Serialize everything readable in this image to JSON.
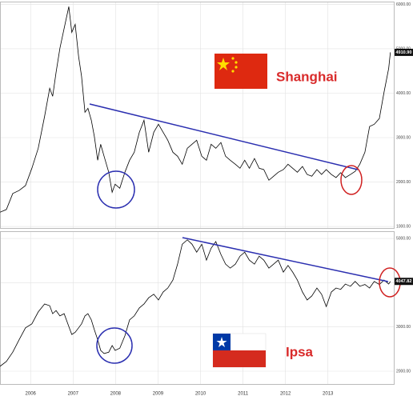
{
  "chart_data": [
    {
      "type": "line",
      "name": "Shanghai",
      "last_label": "4910.90",
      "color": "#000000",
      "ylim": [
        950,
        6050
      ],
      "xlim": [
        2005.28,
        2014.55
      ],
      "yticks": [
        {
          "value": 1000,
          "label": "1000.00"
        },
        {
          "value": 2000,
          "label": "2000.00"
        },
        {
          "value": 3000,
          "label": "3000.00"
        },
        {
          "value": 4000,
          "label": "4000.00"
        },
        {
          "value": 5000,
          "label": "5000.00"
        },
        {
          "value": 6000,
          "label": "6000.00"
        }
      ],
      "x": [
        2005.28,
        2005.43,
        2005.58,
        2005.73,
        2005.88,
        2006.03,
        2006.18,
        2006.33,
        2006.45,
        2006.52,
        2006.6,
        2006.69,
        2006.79,
        2006.9,
        2006.97,
        2007.05,
        2007.13,
        2007.2,
        2007.28,
        2007.35,
        2007.43,
        2007.5,
        2007.58,
        2007.65,
        2007.73,
        2007.84,
        2007.92,
        2007.99,
        2008.1,
        2008.22,
        2008.33,
        2008.44,
        2008.56,
        2008.67,
        2008.78,
        2008.9,
        2009.01,
        2009.12,
        2009.23,
        2009.35,
        2009.46,
        2009.57,
        2009.69,
        2009.8,
        2009.91,
        2010.03,
        2010.14,
        2010.25,
        2010.36,
        2010.48,
        2010.59,
        2010.7,
        2010.82,
        2010.93,
        2011.04,
        2011.15,
        2011.27,
        2011.38,
        2011.49,
        2011.61,
        2011.72,
        2011.83,
        2011.95,
        2012.06,
        2012.17,
        2012.28,
        2012.4,
        2012.51,
        2012.62,
        2012.74,
        2012.85,
        2012.96,
        2013.08,
        2013.19,
        2013.3,
        2013.41,
        2013.53,
        2013.64,
        2013.75,
        2013.87,
        2013.98,
        2014.09,
        2014.21,
        2014.32,
        2014.43,
        2014.47
      ],
      "values": [
        1320,
        1380,
        1740,
        1810,
        1920,
        2310,
        2760,
        3480,
        4110,
        3930,
        4470,
        5010,
        5460,
        5950,
        5370,
        5550,
        4830,
        4380,
        3570,
        3660,
        3390,
        3030,
        2490,
        2850,
        2580,
        2220,
        1770,
        1950,
        1860,
        2220,
        2490,
        2670,
        3120,
        3390,
        2670,
        3120,
        3300,
        3120,
        2940,
        2670,
        2580,
        2400,
        2760,
        2850,
        2940,
        2580,
        2490,
        2850,
        2760,
        2890,
        2580,
        2490,
        2400,
        2310,
        2490,
        2310,
        2530,
        2310,
        2280,
        2040,
        2130,
        2220,
        2280,
        2400,
        2310,
        2220,
        2350,
        2170,
        2130,
        2280,
        2170,
        2280,
        2170,
        2100,
        2210,
        2100,
        2170,
        2240,
        2400,
        2670,
        3250,
        3300,
        3430,
        4020,
        4560,
        4920
      ]
    },
    {
      "type": "line",
      "name": "Ipsa",
      "last_label": "4047.82",
      "color": "#000000",
      "ylim": [
        1700,
        5150
      ],
      "xlim": [
        2005.28,
        2014.55
      ],
      "yticks": [
        {
          "value": 2000,
          "label": "2000.00"
        },
        {
          "value": 3000,
          "label": "3000.00"
        },
        {
          "value": 4000,
          "label": "4000.00"
        },
        {
          "value": 5000,
          "label": "5000.00"
        }
      ],
      "xticks": [
        2006,
        2007,
        2008,
        2009,
        2010,
        2011,
        2012,
        2013
      ],
      "x": [
        2005.28,
        2005.43,
        2005.58,
        2005.73,
        2005.88,
        2006.03,
        2006.18,
        2006.33,
        2006.45,
        2006.52,
        2006.6,
        2006.69,
        2006.79,
        2006.9,
        2006.97,
        2007.05,
        2007.13,
        2007.2,
        2007.28,
        2007.35,
        2007.43,
        2007.5,
        2007.58,
        2007.65,
        2007.73,
        2007.84,
        2007.92,
        2007.99,
        2008.1,
        2008.22,
        2008.33,
        2008.44,
        2008.56,
        2008.67,
        2008.78,
        2008.9,
        2009.01,
        2009.12,
        2009.23,
        2009.35,
        2009.46,
        2009.57,
        2009.69,
        2009.8,
        2009.91,
        2010.03,
        2010.14,
        2010.25,
        2010.36,
        2010.48,
        2010.59,
        2010.7,
        2010.82,
        2010.93,
        2011.04,
        2011.15,
        2011.27,
        2011.38,
        2011.49,
        2011.61,
        2011.72,
        2011.83,
        2011.95,
        2012.06,
        2012.17,
        2012.28,
        2012.4,
        2012.51,
        2012.62,
        2012.74,
        2012.85,
        2012.96,
        2013.08,
        2013.19,
        2013.3,
        2013.41,
        2013.53,
        2013.64,
        2013.75,
        2013.87,
        2013.98,
        2014.09,
        2014.21,
        2014.32,
        2014.43,
        2014.47
      ],
      "values": [
        2110,
        2220,
        2430,
        2710,
        2980,
        3070,
        3340,
        3520,
        3480,
        3300,
        3370,
        3250,
        3300,
        3010,
        2830,
        2880,
        2980,
        3070,
        3250,
        3300,
        3160,
        2940,
        2710,
        2470,
        2400,
        2430,
        2580,
        2470,
        2520,
        2800,
        3160,
        3250,
        3430,
        3520,
        3660,
        3740,
        3610,
        3790,
        3880,
        4060,
        4420,
        4870,
        4970,
        4870,
        4690,
        4870,
        4510,
        4780,
        4930,
        4640,
        4420,
        4330,
        4420,
        4600,
        4690,
        4510,
        4420,
        4600,
        4510,
        4330,
        4420,
        4510,
        4240,
        4390,
        4240,
        4060,
        3790,
        3610,
        3700,
        3880,
        3740,
        3460,
        3790,
        3880,
        3850,
        3970,
        3920,
        4030,
        3920,
        3960,
        3880,
        4030,
        3960,
        4060,
        3970,
        4030
      ]
    }
  ]
}
